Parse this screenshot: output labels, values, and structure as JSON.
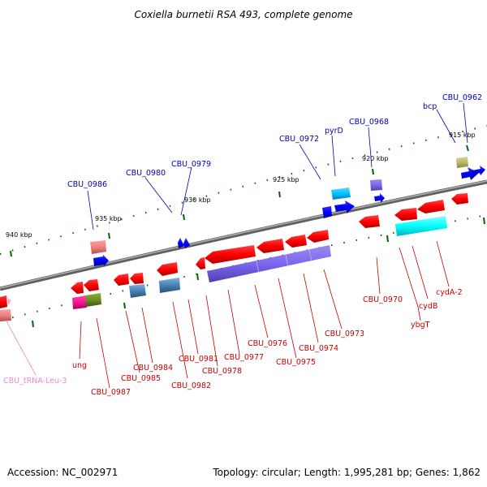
{
  "title": "Coxiella burnetii RSA 493, complete genome",
  "footer": {
    "accession": "Accession: NC_002971",
    "topology": "Topology: circular; Length: 1,995,281 bp; Genes: 1,862"
  },
  "kbp_labels": [
    "915 kbp",
    "920 kbp",
    "925 kbp",
    "930 kbp",
    "935 kbp",
    "940 kbp"
  ],
  "genes_blue": [
    "CBU_0962",
    "bcp",
    "CBU_0968",
    "pyrD",
    "CBU_0972",
    "CBU_0979",
    "CBU_0980",
    "CBU_0986"
  ],
  "genes_red": [
    "CBU_0970",
    "ybgT",
    "cydB",
    "cydA-2",
    "CBU_0973",
    "CBU_0974",
    "CBU_0975",
    "CBU_0976",
    "CBU_0977",
    "CBU_0978",
    "CBU_0981",
    "CBU_0982",
    "CBU_0984",
    "CBU_0985",
    "CBU_0987",
    "ung"
  ],
  "genes_pink": [
    "CBU_tRNA-Leu-3"
  ],
  "colors": {
    "forward_label": "#0000bb",
    "reverse_label": "#cc0000",
    "trna_label": "#ee88cc",
    "backbone": "#808080",
    "tick": "#006600"
  }
}
